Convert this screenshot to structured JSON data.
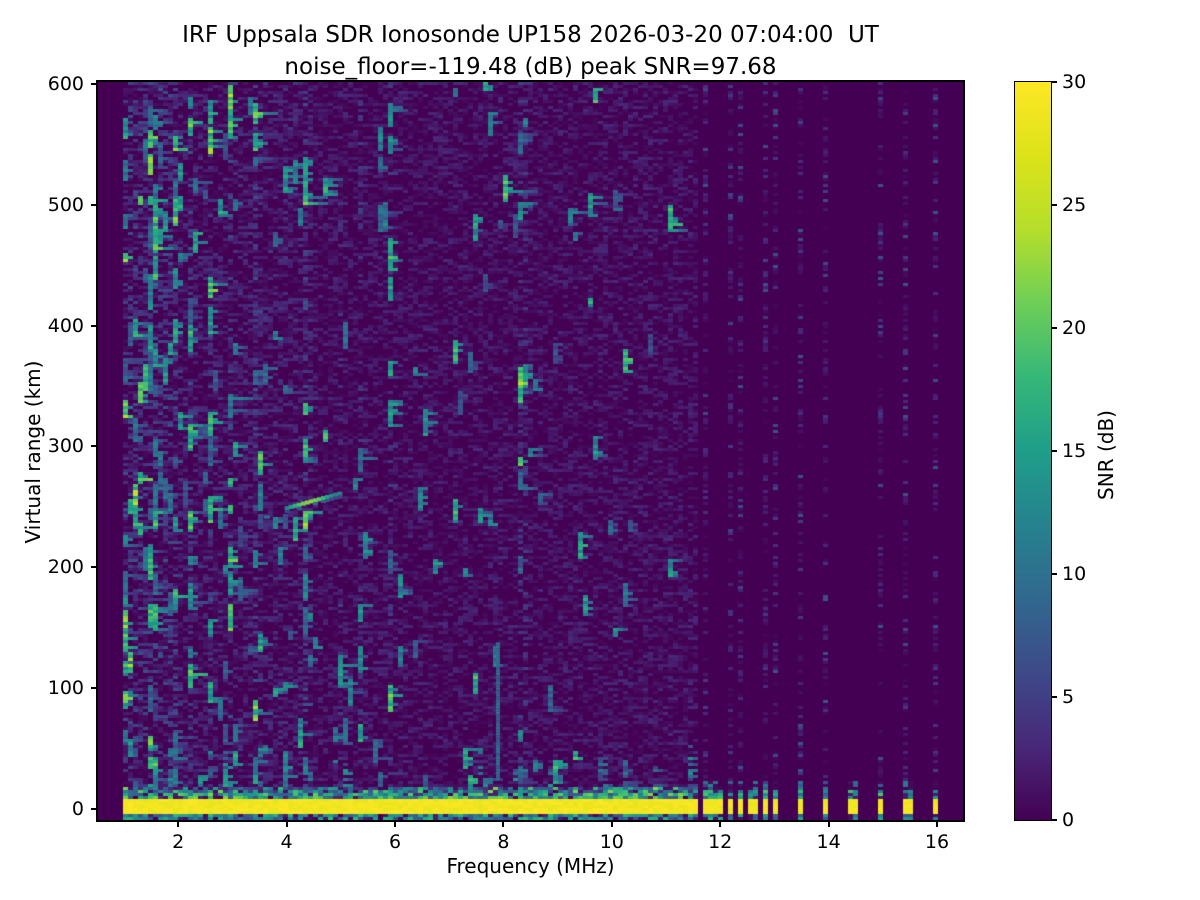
{
  "figure": {
    "kind": "matplotlib-ionogram-figure",
    "background": "#ffffff",
    "text_color": "#000000"
  },
  "chart_data": {
    "type": "heatmap",
    "title": "IRF Uppsala SDR Ionosonde UP158 2026-03-20 07:04:00  UT",
    "subtitle": "noise_floor=-119.48 (dB) peak SNR=97.68",
    "station": "UP158",
    "timestamp_ut": "2026-03-20 07:04:00",
    "noise_floor_db": -119.48,
    "peak_snr_db": 97.68,
    "xlabel": "Frequency (MHz)",
    "ylabel": "Virtual range (km)",
    "xlim": [
      0.52,
      16.48
    ],
    "ylim": [
      -9.1,
      601.6
    ],
    "x_ticks": [
      2,
      4,
      6,
      8,
      10,
      12,
      14,
      16
    ],
    "y_ticks": [
      0,
      100,
      200,
      300,
      400,
      500,
      600
    ],
    "grid": false,
    "legend": "none",
    "colorbar": {
      "label": "SNR (dB)",
      "min": 0,
      "max": 30,
      "ticks": [
        0,
        5,
        10,
        15,
        20,
        25,
        30
      ],
      "colormap": "viridis",
      "position": "right",
      "stops": [
        [
          0.0,
          "#440154"
        ],
        [
          0.1,
          "#482878"
        ],
        [
          0.2,
          "#3e4a89"
        ],
        [
          0.3,
          "#31688e"
        ],
        [
          0.4,
          "#26828e"
        ],
        [
          0.5,
          "#1f9e89"
        ],
        [
          0.6,
          "#35b779"
        ],
        [
          0.7,
          "#6ece58"
        ],
        [
          0.8,
          "#b5de2b"
        ],
        [
          0.9,
          "#dce319"
        ],
        [
          1.0,
          "#fde725"
        ]
      ]
    },
    "sweep": {
      "no_data_f_range": [
        0.52,
        1.0
      ],
      "continuous_f_range": [
        1.0,
        11.6
      ],
      "stepped_f_range": [
        11.6,
        16.3
      ],
      "comb_freqs": [
        11.76,
        11.96,
        12.18,
        12.4,
        12.61,
        12.83,
        13.01,
        13.47,
        13.97,
        14.45,
        14.95,
        15.45,
        15.95
      ],
      "ground_band_r_range": [
        -4.6,
        7.5
      ],
      "ground_band_snr": 30,
      "band_fringe_r_range": [
        7.5,
        18
      ],
      "band_fringe_snr_range": [
        7,
        22
      ]
    },
    "noise": {
      "background_snr_range": [
        0,
        3
      ],
      "streak_snr_range": [
        6,
        18
      ],
      "streaks_denser_below_mhz": 4.5,
      "hot_columns_mhz": [
        1.05,
        1.5,
        1.55,
        1.95,
        2.25,
        2.6,
        3.0,
        3.45,
        4.35,
        5.0,
        5.35,
        5.9,
        8.37
      ]
    },
    "features": [
      {
        "name": "oblique-echo-trace",
        "f_range": [
          4.0,
          4.97
        ],
        "r_range": [
          249,
          261
        ],
        "peak_snr": 22
      },
      {
        "name": "echo-fragment",
        "f": 3.62,
        "r": 242,
        "snr": 10
      },
      {
        "name": "rfi-vertical-line",
        "f": 7.9,
        "r_range": [
          25,
          138
        ],
        "snr": 9
      }
    ]
  }
}
